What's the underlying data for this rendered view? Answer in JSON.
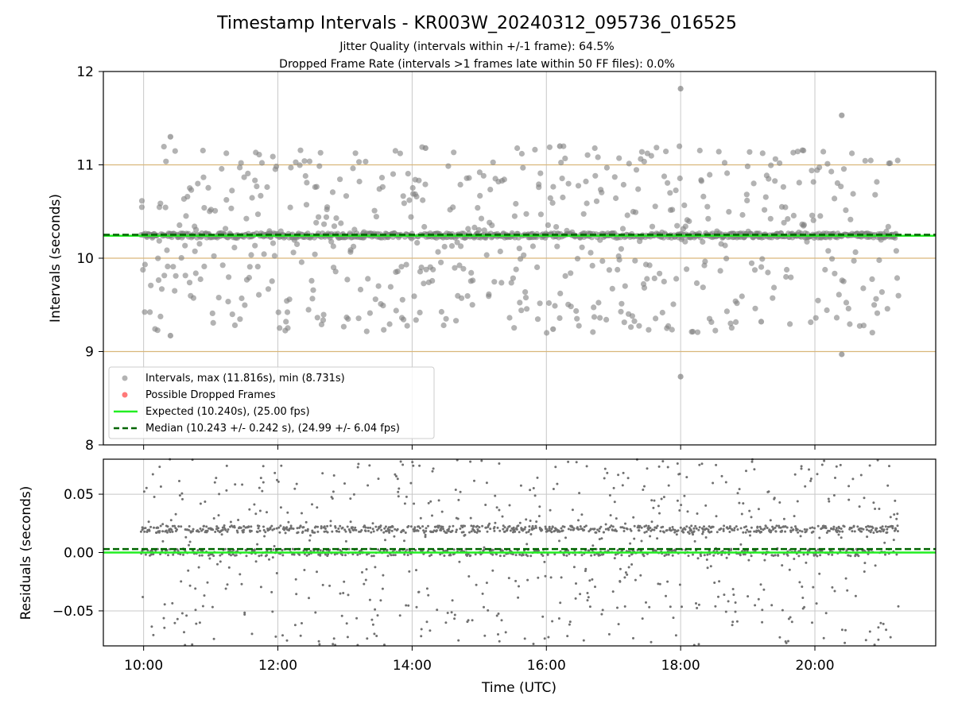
{
  "chart_data": {
    "title": "Timestamp Intervals - KR003W_20240312_095736_016525",
    "subtitle_1": "Jitter Quality (intervals within +/-1 frame): 64.5%",
    "subtitle_2": "Dropped Frame Rate (intervals >1 frames late within 50 FF files): 0.0%",
    "x": {
      "label": "Time (UTC)",
      "ticks": [
        "10:00",
        "12:00",
        "14:00",
        "16:00",
        "18:00",
        "20:00"
      ],
      "tick_hours": [
        10,
        12,
        14,
        16,
        18,
        20
      ],
      "xlim_hours": [
        9.4,
        21.8
      ],
      "data_range_hours": [
        9.96,
        21.25
      ]
    },
    "panels": [
      {
        "id": "intervals",
        "type": "scatter",
        "ylabel": "Intervals (seconds)",
        "ylim": [
          8,
          12
        ],
        "yticks": [
          "8",
          "9",
          "10",
          "11",
          "12"
        ],
        "ytick_values": [
          8,
          9,
          10,
          11,
          12
        ],
        "reference_lines": [
          9,
          10,
          11
        ],
        "grid": true,
        "legend_position": "lower-left",
        "series": [
          {
            "name": "Intervals, max (11.816s), min (8.731s)",
            "kind": "scatter",
            "color": "#808080",
            "dense_band_value": 10.243,
            "spread_min": 9.2,
            "spread_max": 11.2,
            "count": 1300
          },
          {
            "name": "Possible Dropped Frames",
            "kind": "scatter",
            "color": "#ff4040",
            "values": []
          },
          {
            "name": "Expected (10.240s), (25.00 fps)",
            "kind": "hline",
            "value": 10.24,
            "color": "#22ee22",
            "style": "solid"
          },
          {
            "name": "Median (10.243 +/- 0.242 s), (24.99 +/- 6.04 fps)",
            "kind": "hline",
            "value": 10.243,
            "color": "#006400",
            "style": "dashed"
          }
        ],
        "outliers": [
          {
            "x": 18.0,
            "y": 11.816
          },
          {
            "x": 18.0,
            "y": 8.731
          },
          {
            "x": 20.4,
            "y": 11.53
          },
          {
            "x": 20.4,
            "y": 8.97
          },
          {
            "x": 10.4,
            "y": 11.3
          },
          {
            "x": 10.4,
            "y": 9.17
          },
          {
            "x": 16.2,
            "y": 11.2
          },
          {
            "x": 16.1,
            "y": 9.24
          },
          {
            "x": 14.2,
            "y": 11.18
          },
          {
            "x": 19.2,
            "y": 9.32
          }
        ]
      },
      {
        "id": "residuals",
        "type": "scatter",
        "ylabel": "Residuals (seconds)",
        "ylim": [
          -0.08,
          0.08
        ],
        "yticks": [
          "−0.05",
          "0.00",
          "0.05"
        ],
        "ytick_values": [
          -0.05,
          0.0,
          0.05
        ],
        "grid": true,
        "series": [
          {
            "kind": "scatter",
            "color": "#707070",
            "bands": [
              0.02,
              0.0
            ],
            "spread": 0.08,
            "count": 1800
          },
          {
            "kind": "hline",
            "value": 0.0,
            "color": "#22ee22",
            "style": "solid"
          },
          {
            "kind": "hline",
            "value": 0.003,
            "color": "#006400",
            "style": "dashed"
          }
        ]
      }
    ]
  }
}
